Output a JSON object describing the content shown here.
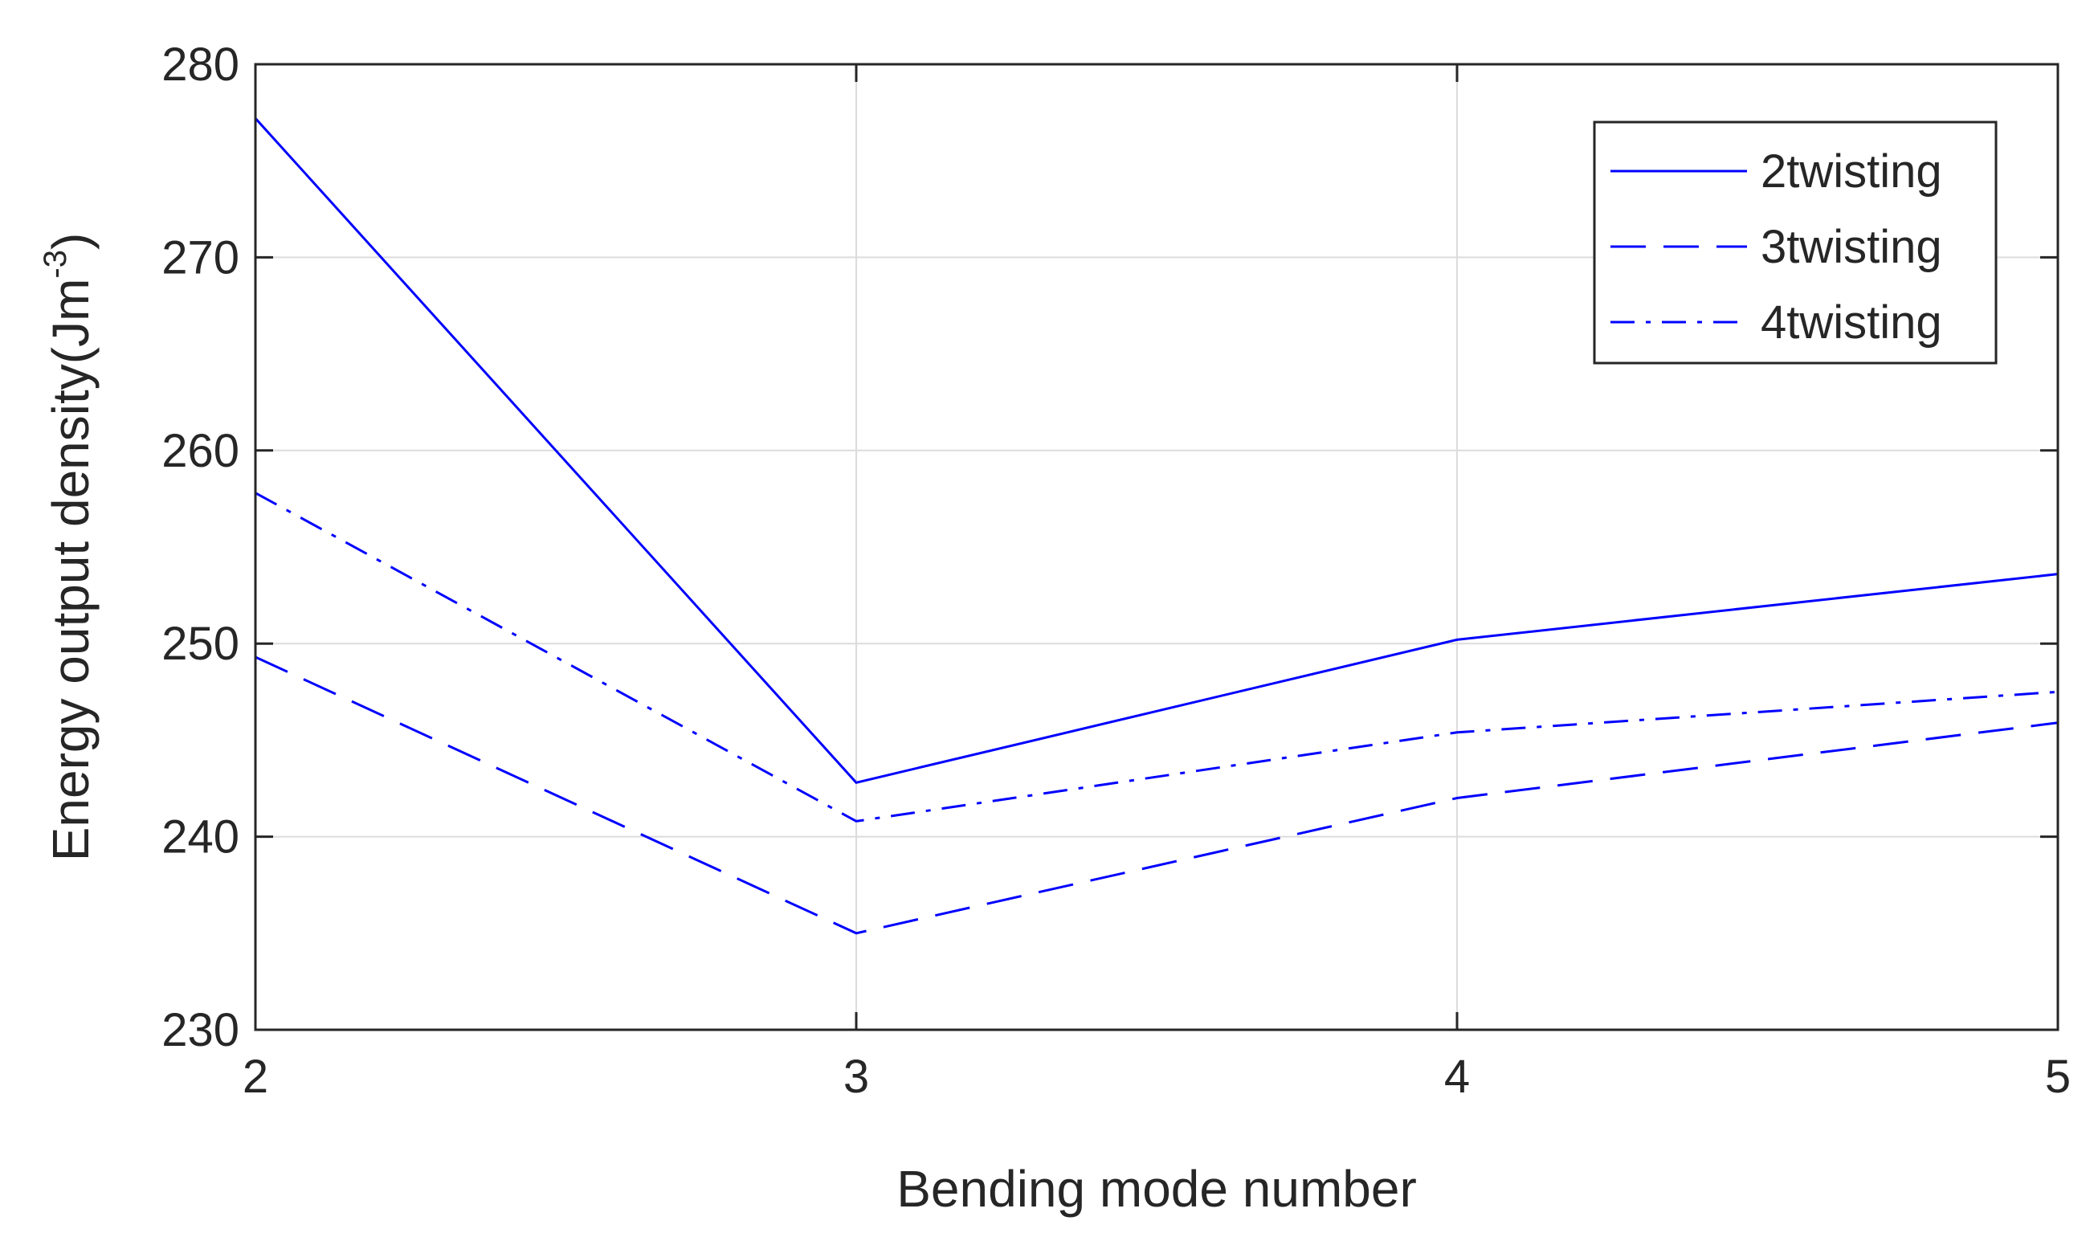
{
  "chart_data": {
    "type": "line",
    "title": "",
    "xlabel": "Bending mode number",
    "ylabel": {
      "prefix": "Energy output density(Jm",
      "superscript": "-3",
      "suffix": ")"
    },
    "x": [
      2,
      3,
      4,
      5
    ],
    "xlim": [
      2,
      5
    ],
    "ylim": [
      230,
      280
    ],
    "xticks": [
      "2",
      "3",
      "4",
      "5"
    ],
    "yticks": [
      "230",
      "240",
      "250",
      "260",
      "270",
      "280"
    ],
    "grid": true,
    "legend_position": "top-right",
    "series": [
      {
        "name": "2twisting",
        "style": "solid",
        "values": [
          277.2,
          242.8,
          250.2,
          253.6
        ]
      },
      {
        "name": "3twisting",
        "style": "dashed",
        "values": [
          249.3,
          235.0,
          242.0,
          245.9
        ]
      },
      {
        "name": "4twisting",
        "style": "dash-dot",
        "values": [
          257.8,
          240.8,
          245.4,
          247.5
        ]
      }
    ],
    "line_color": "#0000ff"
  }
}
